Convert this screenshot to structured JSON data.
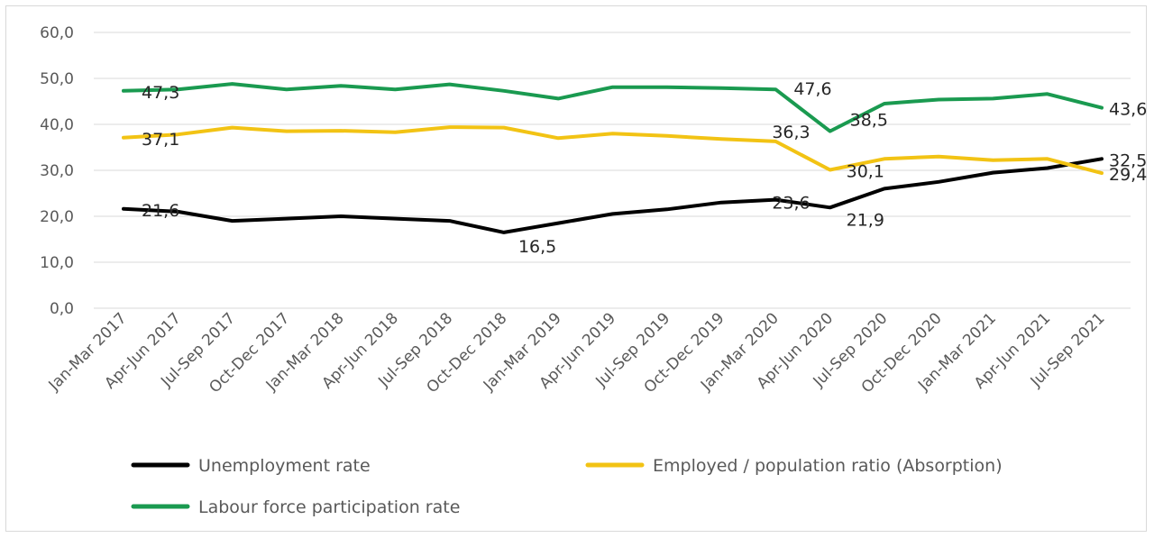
{
  "chart_data": {
    "type": "line",
    "title": "",
    "xlabel": "",
    "ylabel": "",
    "ylim": [
      0,
      60
    ],
    "yticks": [
      "0,0",
      "10,0",
      "20,0",
      "30,0",
      "40,0",
      "50,0",
      "60,0"
    ],
    "grid": true,
    "legend_position": "bottom",
    "categories": [
      "Jan-Mar 2017",
      "Apr-Jun 2017",
      "Jul-Sep 2017",
      "Oct-Dec 2017",
      "Jan-Mar 2018",
      "Apr-Jun 2018",
      "Jul-Sep 2018",
      "Oct-Dec 2018",
      "Jan-Mar 2019",
      "Apr-Jun 2019",
      "Jul-Sep 2019",
      "Oct-Dec 2019",
      "Jan-Mar 2020",
      "Apr-Jun 2020",
      "Jul-Sep 2020",
      "Oct-Dec 2020",
      "Jan-Mar 2021",
      "Apr-Jun 2021",
      "Jul-Sep 2021"
    ],
    "series": [
      {
        "name": "Unemployment rate",
        "color": "#000000",
        "values": [
          21.6,
          21.0,
          19.0,
          19.5,
          20.0,
          19.5,
          19.0,
          16.5,
          18.5,
          20.5,
          21.5,
          23.0,
          23.6,
          21.9,
          26.0,
          27.5,
          29.5,
          30.5,
          32.5
        ],
        "labels": [
          {
            "index": 0,
            "text": "21,6"
          },
          {
            "index": 7,
            "text": "16,5"
          },
          {
            "index": 12,
            "text": "23,6"
          },
          {
            "index": 13,
            "text": "21,9"
          },
          {
            "index": 18,
            "text": "32,5"
          }
        ]
      },
      {
        "name": "Employed / population ratio (Absorption)",
        "color": "#f2c314",
        "values": [
          37.1,
          37.8,
          39.3,
          38.5,
          38.6,
          38.3,
          39.4,
          39.3,
          37.0,
          38.0,
          37.5,
          36.8,
          36.3,
          30.1,
          32.5,
          33.0,
          32.2,
          32.5,
          29.4
        ],
        "labels": [
          {
            "index": 0,
            "text": "37,1"
          },
          {
            "index": 12,
            "text": "36,3"
          },
          {
            "index": 13,
            "text": "30,1"
          },
          {
            "index": 18,
            "text": "29,4"
          }
        ]
      },
      {
        "name": "Labour force participation rate",
        "color": "#1a9a50",
        "values": [
          47.3,
          47.6,
          48.8,
          47.6,
          48.4,
          47.6,
          48.7,
          47.3,
          45.6,
          48.1,
          48.1,
          47.9,
          47.6,
          38.5,
          44.5,
          45.4,
          45.6,
          46.6,
          43.6
        ],
        "labels": [
          {
            "index": 0,
            "text": "47,3"
          },
          {
            "index": 12,
            "text": "47,6"
          },
          {
            "index": 13,
            "text": "38,5"
          },
          {
            "index": 18,
            "text": "43,6"
          }
        ]
      }
    ]
  }
}
